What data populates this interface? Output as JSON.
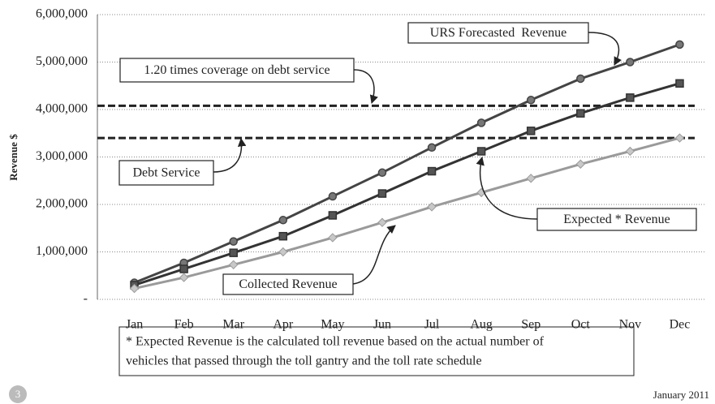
{
  "chart_data": {
    "type": "line",
    "y_axis_label": "Revenue $",
    "categories": [
      "Jan",
      "Feb",
      "Mar",
      "Apr",
      "May",
      "Jun",
      "Jul",
      "Aug",
      "Sep",
      "Oct",
      "Nov",
      "Dec"
    ],
    "series": [
      {
        "name": "URS Forecasted  Revenue",
        "color": "#444444",
        "marker": "circle",
        "values": [
          350000,
          770000,
          1220000,
          1670000,
          2170000,
          2670000,
          3200000,
          3720000,
          4200000,
          4650000,
          5000000,
          5370000
        ]
      },
      {
        "name": "Expected * Revenue",
        "color": "#333333",
        "marker": "square",
        "values": [
          300000,
          640000,
          980000,
          1330000,
          1770000,
          2230000,
          2700000,
          3120000,
          3550000,
          3920000,
          4250000,
          4550000
        ]
      },
      {
        "name": "Collected Revenue",
        "color": "#9a9a9a",
        "marker": "diamond",
        "values": [
          230000,
          460000,
          730000,
          1000000,
          1300000,
          1620000,
          1950000,
          2250000,
          2550000,
          2850000,
          3120000,
          3400000
        ]
      }
    ],
    "reference_lines": [
      {
        "label": "1.20 times coverage on debt service",
        "value": 4080000
      },
      {
        "label": "Debt Service",
        "value": 3400000
      }
    ],
    "ylim": [
      0,
      6000000
    ],
    "yticks": [
      {
        "value": 0,
        "label": "-"
      },
      {
        "value": 1000000,
        "label": "1,000,000"
      },
      {
        "value": 2000000,
        "label": "2,000,000"
      },
      {
        "value": 3000000,
        "label": "3,000,000"
      },
      {
        "value": 4000000,
        "label": "4,000,000"
      },
      {
        "value": 5000000,
        "label": "5,000,000"
      },
      {
        "value": 6000000,
        "label": "6,000,000"
      }
    ],
    "grid": true,
    "footnote": [
      "* Expected Revenue is the calculated toll revenue based on the actual number of",
      "vehicles that passed through the toll gantry and the toll rate schedule"
    ],
    "date": "January 2011",
    "page_number": "3"
  }
}
